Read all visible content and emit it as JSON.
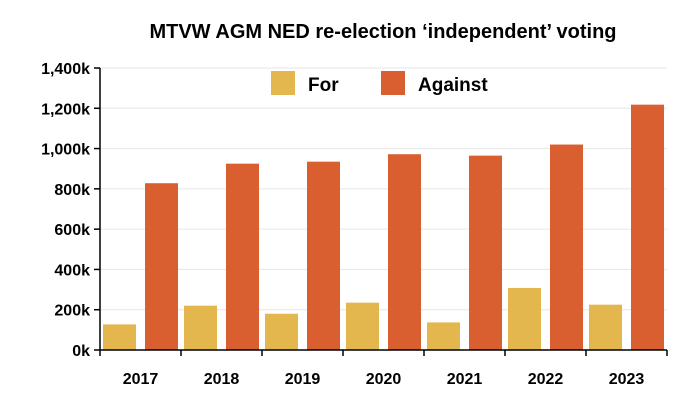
{
  "chart_data": {
    "type": "bar",
    "title": "MTVW AGM NED re-election ‘independent’ voting",
    "xlabel": "",
    "ylabel": "",
    "categories": [
      "2017",
      "2018",
      "2019",
      "2020",
      "2021",
      "2022",
      "2023"
    ],
    "series": [
      {
        "name": "For",
        "color": "#E3B64E",
        "values": [
          127000,
          220000,
          180000,
          235000,
          137000,
          308000,
          225000
        ]
      },
      {
        "name": "Against",
        "color": "#D95F31",
        "values": [
          828000,
          925000,
          935000,
          972000,
          965000,
          1020000,
          1218000
        ]
      }
    ],
    "ylim": [
      0,
      1400000
    ],
    "yticks": [
      0,
      200000,
      400000,
      600000,
      800000,
      1000000,
      1200000,
      1400000
    ],
    "ytick_labels": [
      "0k",
      "200k",
      "400k",
      "600k",
      "800k",
      "1,000k",
      "1,200k",
      "1,400k"
    ],
    "grid": true,
    "legend_position": "top"
  }
}
